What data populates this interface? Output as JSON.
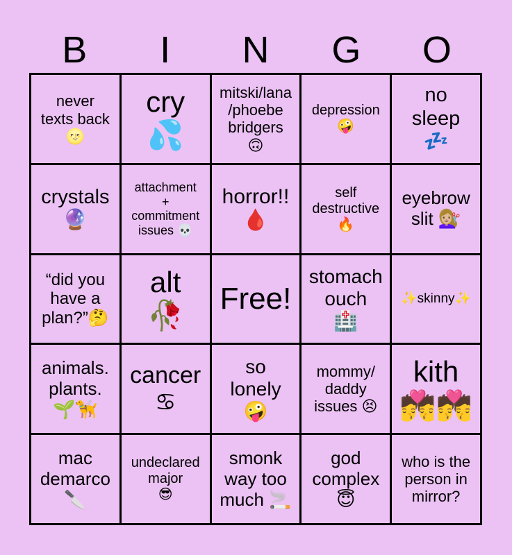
{
  "header": {
    "letters": [
      "B",
      "I",
      "N",
      "G",
      "O"
    ]
  },
  "cells": [
    "never\ntexts back\n🌝",
    "cry\n💦",
    "mitski/lana\n/phoebe\nbridgers\n🙃",
    "depression\n🤪",
    "no\nsleep\n💤",
    "crystals\n🔮",
    "attachment\n+\ncommitment\nissues 💀",
    "horror!!\n🩸",
    "self\ndestructive\n🔥",
    "eyebrow\nslit 💇🏼‍♀️",
    "“did you\nhave a\nplan?”🤔",
    "alt\n🥀",
    "Free!",
    "stomach\nouch\n🏥",
    "✨skinny✨",
    "animals.\nplants.\n🌱🦮",
    "cancer\n♋",
    "so\nlonely\n🤪",
    "mommy/\ndaddy\nissues 😣",
    "kith\n💏💏",
    "mac\ndemarco\n🔪",
    "undeclared\nmajor\n😎",
    "smonk\nway too\nmuch 🚬",
    "god\ncomplex\n😇",
    "who is the\nperson in\nmirror?"
  ],
  "colors": {
    "background": "#ebc2f3",
    "grid": "#000000"
  }
}
